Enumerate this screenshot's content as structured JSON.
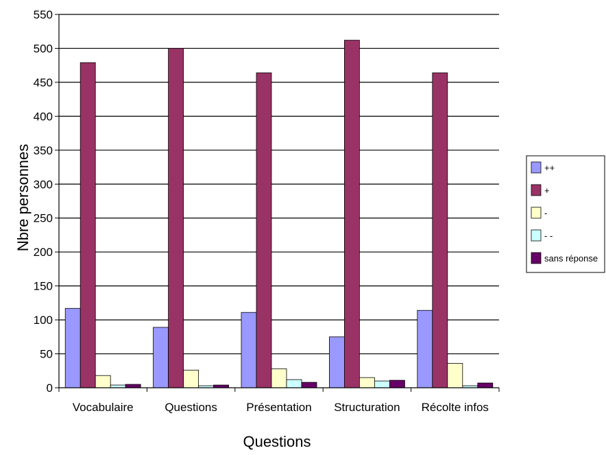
{
  "chart_data": {
    "type": "bar",
    "title": "",
    "xlabel": "Questions",
    "ylabel": "Nbre personnes",
    "categories": [
      "Vocabulaire",
      "Questions",
      "Présentation",
      "Structuration",
      "Récolte infos"
    ],
    "series": [
      {
        "name": "++",
        "color": "#9999ff",
        "values": [
          117,
          89,
          111,
          75,
          114
        ]
      },
      {
        "name": "+",
        "color": "#993366",
        "values": [
          479,
          500,
          464,
          512,
          464
        ]
      },
      {
        "name": "-",
        "color": "#ffffcc",
        "values": [
          18,
          26,
          28,
          15,
          36
        ]
      },
      {
        "name": "- -",
        "color": "#ccffff",
        "values": [
          4,
          3,
          12,
          10,
          3
        ]
      },
      {
        "name": "sans réponse",
        "color": "#660066",
        "values": [
          5,
          4,
          8,
          11,
          7
        ]
      }
    ],
    "ylim": [
      0,
      550
    ],
    "yticks": [
      0,
      50,
      100,
      150,
      200,
      250,
      300,
      350,
      400,
      450,
      500,
      550
    ],
    "grid": true,
    "legend_position": "right"
  }
}
